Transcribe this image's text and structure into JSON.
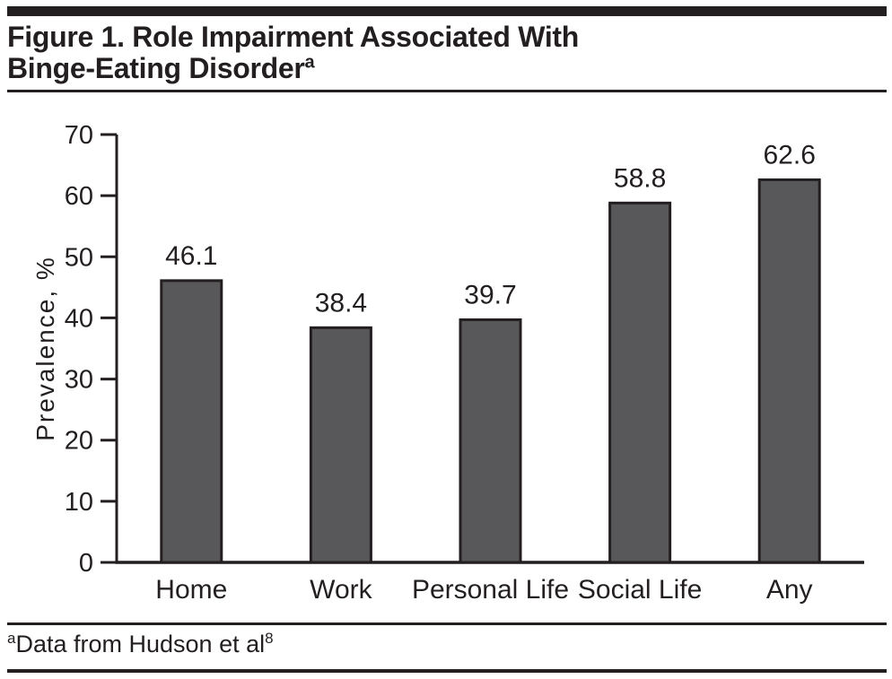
{
  "figure": {
    "title_line1": "Figure 1. Role Impairment Associated With",
    "title_line2": "Binge-Eating Disorder",
    "title_superscript": "a",
    "footnote_marker": "a",
    "footnote_text": "Data from Hudson et al",
    "footnote_reference": "8"
  },
  "colors": {
    "ink": "#231f20",
    "bar_fill": "#58585a",
    "background": "#ffffff"
  },
  "chart_data": {
    "type": "bar",
    "title": "Figure 1. Role Impairment Associated With Binge-Eating Disorder",
    "categories": [
      "Home",
      "Work",
      "Personal Life",
      "Social Life",
      "Any"
    ],
    "values": [
      46.1,
      38.4,
      39.7,
      58.8,
      62.6
    ],
    "value_labels": [
      "46.1",
      "38.4",
      "39.7",
      "58.8",
      "62.6"
    ],
    "xlabel": "",
    "ylabel": "Prevalence, %",
    "ylim": [
      0,
      70
    ],
    "yticks": [
      0,
      10,
      20,
      30,
      40,
      50,
      60,
      70
    ],
    "grid": false,
    "legend_position": "none",
    "footnote": "Data from Hudson et al"
  }
}
